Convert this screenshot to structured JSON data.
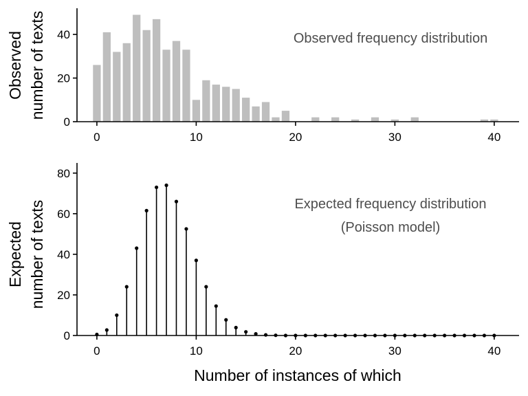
{
  "chart_data": [
    {
      "type": "bar",
      "ylabel_lines": [
        "Observed",
        "number of texts"
      ],
      "annotation_lines": [
        "Observed frequency distribution"
      ],
      "xlim": [
        -2,
        42.5
      ],
      "ylim": [
        0,
        52
      ],
      "xticks": [
        0,
        10,
        20,
        30,
        40
      ],
      "yticks": [
        0,
        20,
        40
      ],
      "bar_color": "#bebebe",
      "x": [
        0,
        1,
        2,
        3,
        4,
        5,
        6,
        7,
        8,
        9,
        10,
        11,
        12,
        13,
        14,
        15,
        16,
        17,
        18,
        19,
        20,
        21,
        22,
        23,
        24,
        25,
        26,
        27,
        28,
        29,
        30,
        31,
        32,
        33,
        34,
        35,
        36,
        37,
        38,
        39,
        40
      ],
      "values": [
        26,
        41,
        32,
        36,
        49,
        42,
        47,
        33,
        37,
        33,
        10,
        19,
        17,
        16,
        15,
        11,
        7,
        9,
        2,
        5,
        0,
        0,
        2,
        0,
        2,
        0,
        1,
        0,
        2,
        0,
        1,
        0,
        2,
        0,
        0,
        0,
        0,
        0,
        0,
        1,
        1
      ]
    },
    {
      "type": "stem",
      "ylabel_lines": [
        "Expected",
        "number of texts"
      ],
      "annotation_lines": [
        "Expected frequency distribution",
        "(Poisson model)"
      ],
      "xlabel": "Number of instances of which",
      "xlim": [
        -2,
        42.5
      ],
      "ylim": [
        0,
        85
      ],
      "xticks": [
        0,
        10,
        20,
        30,
        40
      ],
      "yticks": [
        0,
        20,
        40,
        60,
        80
      ],
      "stem_color": "#000000",
      "x": [
        0,
        1,
        2,
        3,
        4,
        5,
        6,
        7,
        8,
        9,
        10,
        11,
        12,
        13,
        14,
        15,
        16,
        17,
        18,
        19,
        20,
        21,
        22,
        23,
        24,
        25,
        26,
        27,
        28,
        29,
        30,
        31,
        32,
        33,
        34,
        35,
        36,
        37,
        38,
        39,
        40
      ],
      "values": [
        0.5,
        2.7,
        10,
        24,
        43,
        61.5,
        73,
        74,
        66,
        52.5,
        37,
        24,
        14.5,
        7.7,
        3.9,
        1.8,
        0.8,
        0.3,
        0.1,
        0,
        0,
        0,
        0,
        0,
        0,
        0,
        0,
        0,
        0,
        0,
        0,
        0,
        0,
        0,
        0,
        0,
        0,
        0,
        0,
        0,
        0
      ]
    }
  ]
}
